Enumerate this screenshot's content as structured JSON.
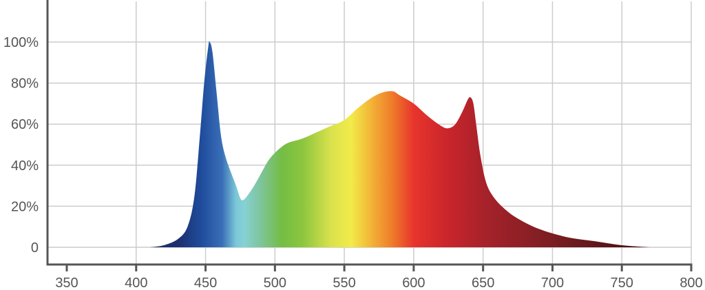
{
  "chart_data": {
    "type": "area",
    "title": "",
    "xlabel": "",
    "ylabel": "",
    "xlim": [
      350,
      800
    ],
    "ylim": [
      0,
      100
    ],
    "x_ticks": [
      350,
      400,
      450,
      500,
      550,
      600,
      650,
      700,
      750,
      800
    ],
    "x_tick_labels": [
      "350",
      "400",
      "450",
      "500",
      "550",
      "600",
      "650",
      "700",
      "750",
      "800"
    ],
    "y_ticks": [
      0,
      20,
      40,
      60,
      80,
      100
    ],
    "y_tick_labels": [
      "0",
      "20%",
      "40%",
      "60%",
      "80%",
      "100%"
    ],
    "grid": true,
    "fill": "visible-spectrum gradient",
    "series": [
      {
        "points": [
          [
            410,
            0
          ],
          [
            420,
            1
          ],
          [
            430,
            4
          ],
          [
            437,
            10
          ],
          [
            442,
            25
          ],
          [
            446,
            55
          ],
          [
            449,
            80
          ],
          [
            452,
            98
          ],
          [
            453,
            100
          ],
          [
            455,
            95
          ],
          [
            458,
            75
          ],
          [
            461,
            55
          ],
          [
            464,
            45
          ],
          [
            468,
            37
          ],
          [
            472,
            30
          ],
          [
            475,
            24
          ],
          [
            477,
            23
          ],
          [
            480,
            25
          ],
          [
            485,
            30
          ],
          [
            490,
            36
          ],
          [
            495,
            42
          ],
          [
            500,
            46
          ],
          [
            505,
            49
          ],
          [
            510,
            51
          ],
          [
            520,
            53
          ],
          [
            530,
            56
          ],
          [
            540,
            59
          ],
          [
            550,
            62
          ],
          [
            560,
            68
          ],
          [
            570,
            73
          ],
          [
            578,
            75.5
          ],
          [
            585,
            76
          ],
          [
            590,
            74
          ],
          [
            600,
            70
          ],
          [
            610,
            64
          ],
          [
            620,
            59
          ],
          [
            625,
            58
          ],
          [
            630,
            60
          ],
          [
            635,
            66
          ],
          [
            639,
            72
          ],
          [
            641,
            73
          ],
          [
            643,
            70
          ],
          [
            645,
            60
          ],
          [
            648,
            45
          ],
          [
            652,
            32
          ],
          [
            657,
            25
          ],
          [
            665,
            19
          ],
          [
            675,
            14
          ],
          [
            690,
            9
          ],
          [
            710,
            5
          ],
          [
            730,
            3
          ],
          [
            750,
            1
          ],
          [
            770,
            0
          ]
        ]
      }
    ],
    "colors": {
      "grid": "#cccccc",
      "axis": "#555555",
      "tick_text": "#555555",
      "spectrum_stops": [
        {
          "nm": 430,
          "color": "#1e2f6e"
        },
        {
          "nm": 447,
          "color": "#1f4c9c"
        },
        {
          "nm": 462,
          "color": "#3a6fb8"
        },
        {
          "nm": 472,
          "color": "#7cc8d8"
        },
        {
          "nm": 478,
          "color": "#86d1d4"
        },
        {
          "nm": 490,
          "color": "#7ec49a"
        },
        {
          "nm": 505,
          "color": "#74bd44"
        },
        {
          "nm": 520,
          "color": "#8cc63f"
        },
        {
          "nm": 540,
          "color": "#d9e14c"
        },
        {
          "nm": 555,
          "color": "#f2eb4a"
        },
        {
          "nm": 570,
          "color": "#f3b136"
        },
        {
          "nm": 585,
          "color": "#ee7a2a"
        },
        {
          "nm": 600,
          "color": "#e8342c"
        },
        {
          "nm": 625,
          "color": "#c9252b"
        },
        {
          "nm": 650,
          "color": "#a8222a"
        },
        {
          "nm": 700,
          "color": "#7a1e22"
        },
        {
          "nm": 760,
          "color": "#4a1114"
        }
      ]
    }
  }
}
